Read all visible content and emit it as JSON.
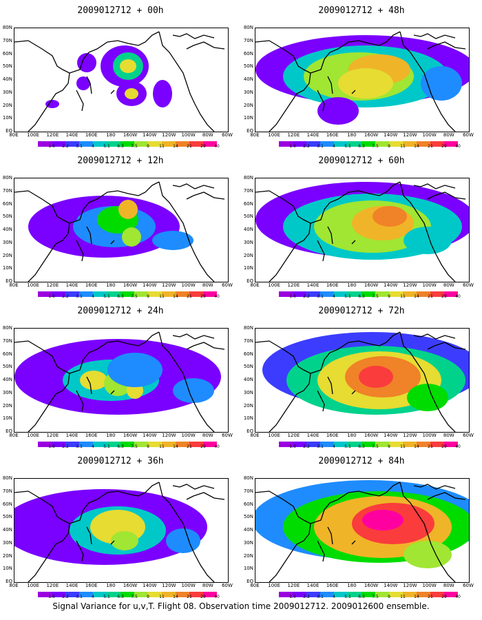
{
  "caption": "Signal Variance for u,v,T. Flight 08. Observation time 2009012712. 2009012600 ensemble.",
  "panels": [
    {
      "title": "2009012712 + 00h"
    },
    {
      "title": "2009012712 + 48h"
    },
    {
      "title": "2009012712 + 12h"
    },
    {
      "title": "2009012712 + 60h"
    },
    {
      "title": "2009012712 + 24h"
    },
    {
      "title": "2009012712 + 72h"
    },
    {
      "title": "2009012712 + 36h"
    },
    {
      "title": "2009012712 + 84h"
    }
  ],
  "y_labels": [
    "80N",
    "70N",
    "60N",
    "50N",
    "40N",
    "30N",
    "20N",
    "10N",
    "EQ"
  ],
  "x_labels": [
    "80E",
    "100E",
    "120E",
    "140E",
    "160E",
    "180",
    "160W",
    "140W",
    "120W",
    "100W",
    "80W",
    "60W"
  ],
  "colorbar": {
    "labels": [
      "1.6",
      "2.2",
      "3.1",
      "4",
      "5.1",
      "6.3",
      "7.5",
      "9",
      "11",
      "14",
      "21",
      "29",
      "40"
    ],
    "colors": [
      "#9b00e0",
      "#7a00ff",
      "#3c3cff",
      "#1e8cff",
      "#00c8c8",
      "#00d28c",
      "#00dc00",
      "#a0e632",
      "#e6dc32",
      "#f0b428",
      "#f08228",
      "#fa3c3c",
      "#ff00a0"
    ]
  }
}
